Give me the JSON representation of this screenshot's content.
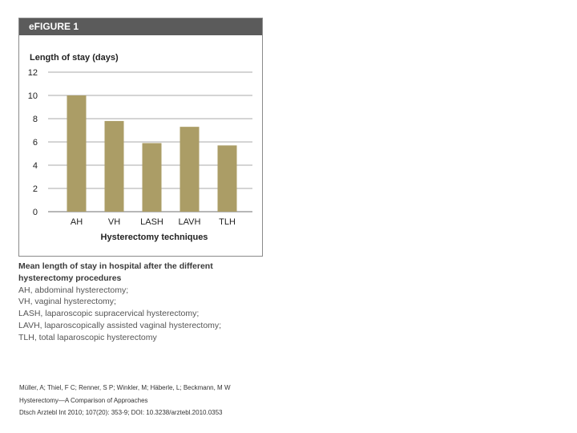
{
  "figure": {
    "label": "eFIGURE 1"
  },
  "chart_data": {
    "type": "bar",
    "categories": [
      "AH",
      "VH",
      "LASH",
      "LAVH",
      "TLH"
    ],
    "values": [
      10.0,
      7.8,
      5.9,
      7.3,
      5.7
    ],
    "ylabel": "Length of stay (days)",
    "xlabel": "Hysterectomy techniques",
    "ylim": [
      0,
      12
    ],
    "yticks": [
      0,
      2,
      4,
      6,
      8,
      10,
      12
    ],
    "grid": true,
    "bar_color": "#ab9d66",
    "grid_color": "#8c8c8c"
  },
  "caption": {
    "title_lines": [
      "Mean length of stay in hospital after the different",
      "hysterectomy procedures"
    ],
    "lines": [
      "AH, abdominal hysterectomy;",
      "VH, vaginal hysterectomy;",
      "LASH, laparoscopic supracervical hysterectomy;",
      "LAVH, laparoscopically assisted vaginal hysterectomy;",
      "TLH, total laparoscopic hysterectomy"
    ]
  },
  "source": {
    "authors": "Müller, A; Thiel, F C; Renner, S P; Winkler, M; Häberle, L; Beckmann, M W",
    "title": "Hysterectomy—A Comparison of Approaches",
    "citation": "Dtsch Arztebl Int 2010; 107(20): 353-9; DOI: 10.3238/arztebl.2010.0353"
  }
}
